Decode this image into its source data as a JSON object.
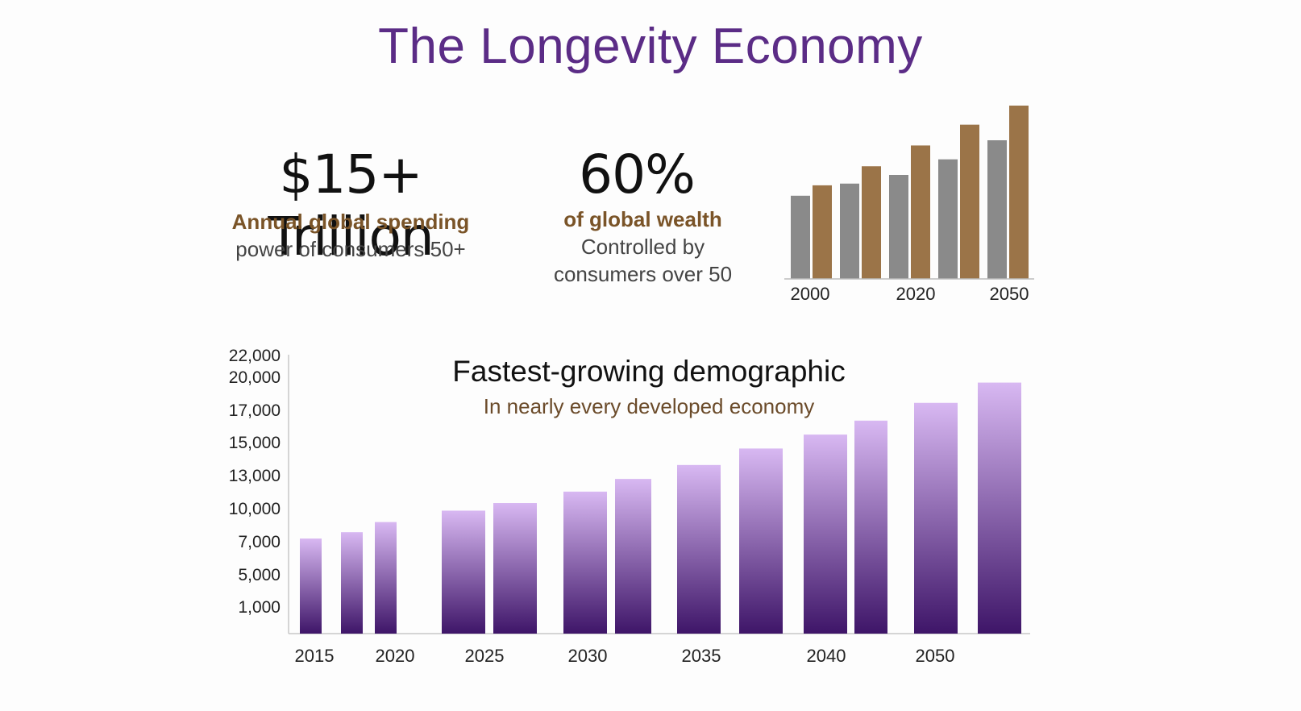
{
  "title": "The Longevity Economy",
  "stats": [
    {
      "value": "$15+ Trillion",
      "line1": "Annual global spending",
      "line2": "power of consumers 50+"
    },
    {
      "value": "60%",
      "line1": "of global wealth",
      "line2": "Controlled by",
      "line3": "consumers over 50"
    }
  ],
  "colors": {
    "title": "#5b2c86",
    "accent_text": "#7a5428",
    "grey_bar": "#8a8a8a",
    "gold_bar": "#9b7448",
    "purple_top": "#d8b8f2",
    "purple_bottom": "#3e1568"
  },
  "chart_data": [
    {
      "type": "bar",
      "title": "",
      "ticks": [
        "2000",
        "2020",
        "2050"
      ],
      "groups": [
        {
          "series": [
            {
              "name": "grey",
              "value": 48
            },
            {
              "name": "gold",
              "value": 54
            }
          ]
        },
        {
          "series": [
            {
              "name": "grey",
              "value": 55
            },
            {
              "name": "gold",
              "value": 65
            }
          ]
        },
        {
          "series": [
            {
              "name": "grey",
              "value": 60
            },
            {
              "name": "gold",
              "value": 77
            }
          ]
        },
        {
          "series": [
            {
              "name": "grey",
              "value": 69
            },
            {
              "name": "gold",
              "value": 89
            }
          ]
        },
        {
          "series": [
            {
              "name": "grey",
              "value": 80
            },
            {
              "name": "gold",
              "value": 100
            }
          ]
        }
      ],
      "ylim": [
        0,
        100
      ]
    },
    {
      "type": "bar",
      "title": "Fastest-growing demographic",
      "subtitle": "In nearly every developed economy",
      "xlabel": "",
      "ylabel": "",
      "ytick_labels": [
        "22,000",
        "20,000",
        "17,000",
        "15,000",
        "13,000",
        "10,000",
        "7,000",
        "5,000",
        "1,000"
      ],
      "xtick_labels": [
        "2015",
        "2020",
        "2025",
        "2030",
        "2035",
        "2040",
        "2050"
      ],
      "values": [
        7500,
        8000,
        8800,
        9700,
        10300,
        11200,
        12200,
        13300,
        14600,
        15700,
        16800,
        18200,
        19800
      ],
      "ylim": [
        0,
        22000
      ]
    }
  ]
}
